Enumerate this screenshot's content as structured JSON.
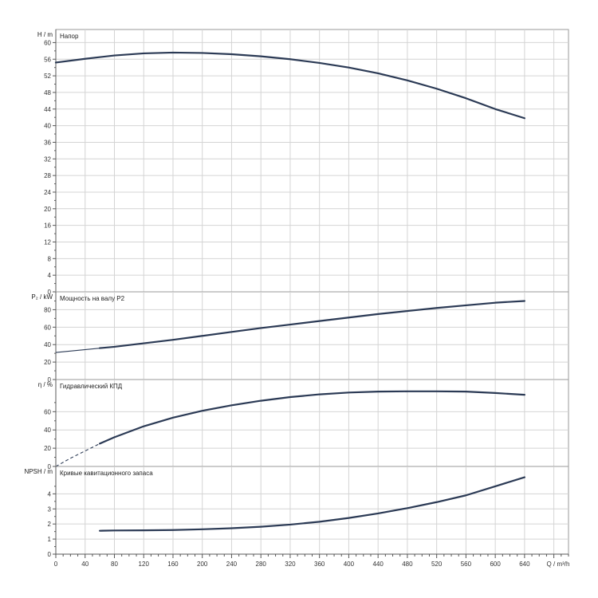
{
  "chart_data": {
    "type": "line",
    "x_axis": {
      "label": "Q / m³/h",
      "ticks": [
        "0",
        "40",
        "80",
        "120",
        "160",
        "200",
        "240",
        "280",
        "320",
        "360",
        "400",
        "440",
        "480",
        "520",
        "560",
        "600",
        "640"
      ],
      "range": [
        0,
        700
      ],
      "tick_step": 40,
      "minor_step": 10
    },
    "panels": [
      {
        "id": "head",
        "title": "Напор",
        "ylabel": "H / m",
        "ylim": [
          0,
          62
        ],
        "yticks": [
          "0",
          "4",
          "8",
          "12",
          "16",
          "20",
          "24",
          "28",
          "32",
          "36",
          "40",
          "44",
          "48",
          "52",
          "56",
          "60"
        ],
        "series": [
          {
            "style": "solid",
            "x": [
              0,
              40,
              80,
              120,
              160,
              200,
              240,
              280,
              320,
              360,
              400,
              440,
              480,
              520,
              560,
              600,
              640
            ],
            "y": [
              55.2,
              56.1,
              56.9,
              57.4,
              57.6,
              57.5,
              57.2,
              56.7,
              56.0,
              55.1,
              54.0,
              52.6,
              50.9,
              48.9,
              46.6,
              44.0,
              41.8
            ]
          }
        ]
      },
      {
        "id": "power",
        "title": "Мощность на валу P2",
        "ylabel": "P₂ / kW",
        "ylim": [
          0,
          95
        ],
        "yticks": [
          "0",
          "20",
          "40",
          "60",
          "80"
        ],
        "series": [
          {
            "style": "thin",
            "x": [
              0,
              80
            ],
            "y": [
              31,
              37.5
            ]
          },
          {
            "style": "solid",
            "x": [
              60,
              80,
              120,
              160,
              200,
              240,
              280,
              320,
              360,
              400,
              440,
              480,
              520,
              560,
              600,
              640
            ],
            "y": [
              36,
              37.5,
              41.5,
              45.5,
              50,
              54.5,
              59,
              63,
              67,
              71,
              75,
              78.5,
              82,
              85,
              88,
              90
            ]
          }
        ]
      },
      {
        "id": "efficiency",
        "title": "Гидравлический КПД",
        "ylabel": "η / %",
        "ylim": [
          0,
          90
        ],
        "yticks": [
          "0",
          "20",
          "40",
          "60"
        ],
        "series": [
          {
            "style": "dashed",
            "x": [
              0,
              20,
              40,
              60
            ],
            "y": [
              0,
              9,
              17,
              25
            ]
          },
          {
            "style": "solid",
            "x": [
              60,
              80,
              120,
              160,
              200,
              240,
              280,
              320,
              360,
              400,
              440,
              480,
              520,
              560,
              600,
              640
            ],
            "y": [
              25,
              32,
              44,
              53.5,
              61,
              67,
              72,
              76,
              79,
              81,
              82,
              82.3,
              82.3,
              82,
              80.5,
              78.5
            ]
          }
        ]
      },
      {
        "id": "npsh",
        "title": "Кривые кавитационного запаса",
        "ylabel": "NPSH / m",
        "ylim": [
          0,
          5.5
        ],
        "yticks": [
          "0",
          "1",
          "2",
          "3",
          "4"
        ],
        "series": [
          {
            "style": "solid",
            "x": [
              60,
              80,
              120,
              160,
              200,
              240,
              280,
              320,
              360,
              400,
              440,
              480,
              520,
              560,
              600,
              640
            ],
            "y": [
              1.55,
              1.57,
              1.58,
              1.6,
              1.65,
              1.72,
              1.82,
              1.96,
              2.15,
              2.4,
              2.7,
              3.05,
              3.45,
              3.9,
              4.5,
              5.1
            ]
          }
        ]
      }
    ]
  }
}
